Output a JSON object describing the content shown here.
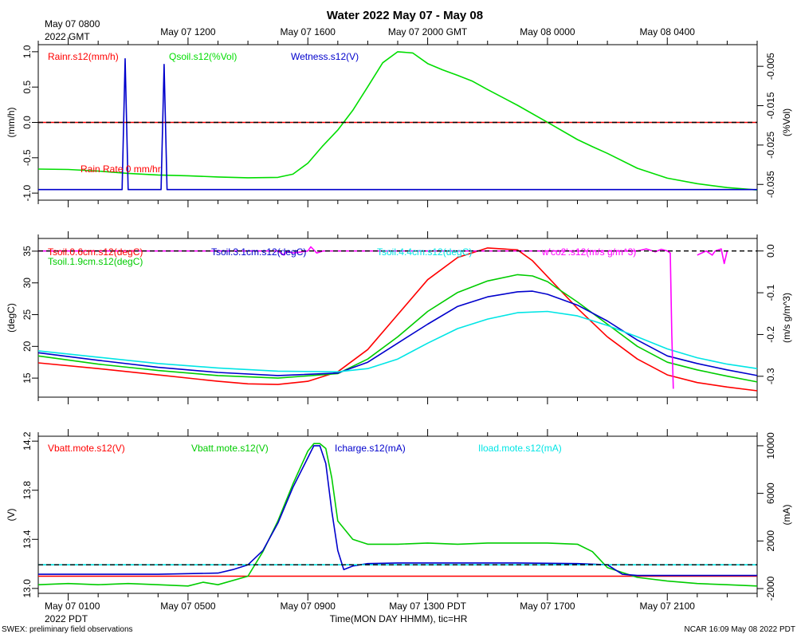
{
  "chart_data": {
    "type": "line",
    "title": "Water 2022 May 07 - May 08",
    "top_date_axis": {
      "origin_label": [
        "May 07 0800",
        "2022 GMT"
      ],
      "ticks": [
        "May 07 1200",
        "May 07 1600",
        "May 07 2000 GMT",
        "May 08 0000",
        "May 08 0400"
      ]
    },
    "bottom_date_axis": {
      "origin_label": [
        "May 07 0100",
        "2022 PDT"
      ],
      "ticks": [
        "May 07 0500",
        "May 07 0900",
        "May 07 1300 PDT",
        "May 07 1700",
        "May 07 2100"
      ],
      "xlabel": "Time(MON DAY HHMM), tic=HR"
    },
    "x_hours_pdt": [
      0,
      24
    ],
    "footer_left": "SWEX: preliminary field observations",
    "footer_right": "NCAR 16:09 May 08 2022 PDT",
    "panels": [
      {
        "id": "water",
        "ylabel_left": "(mm/h)",
        "ylabel_right": "(%Vol)",
        "ylim_left": [
          -1.1,
          1.1
        ],
        "ylim_right": [
          -0.039,
          0.0005
        ],
        "left_ticks": [
          "1.0",
          "0.5",
          "0.0",
          "-0.5",
          "-1.0"
        ],
        "left_tick_values": [
          1.0,
          0.5,
          0.0,
          -0.5,
          -1.0
        ],
        "right_ticks": [
          "-0.005",
          "-0.015",
          "-0.025",
          "-0.035"
        ],
        "right_tick_values": [
          -0.005,
          -0.015,
          -0.025,
          -0.035
        ],
        "annotation": "Rain Rate  0 mm/hr",
        "zero_line": {
          "axis": "left",
          "value": 0
        },
        "series": [
          {
            "name": "Rainr.s12(mm/h)",
            "color": "#ff0000",
            "axis": "left",
            "x": [
              0,
              24
            ],
            "y": [
              0,
              0
            ]
          },
          {
            "name": "Qsoil.s12(%Vol)",
            "color": "#00dd00",
            "axis": "right",
            "x": [
              0,
              1,
              2,
              3,
              4,
              5,
              6,
              7,
              8,
              8.5,
              9,
              9.5,
              10,
              10.5,
              11,
              11.5,
              12,
              12.5,
              13,
              13.5,
              14,
              14.5,
              15,
              16,
              17,
              18,
              18.5,
              19,
              20,
              21,
              22,
              23,
              24
            ],
            "y": [
              -0.0311,
              -0.0312,
              -0.0316,
              -0.0322,
              -0.0326,
              -0.0328,
              -0.0331,
              -0.0333,
              -0.0332,
              -0.0324,
              -0.0296,
              -0.0252,
              -0.0212,
              -0.0162,
              -0.0102,
              -0.0041,
              -0.0013,
              -0.0016,
              -0.0043,
              -0.0059,
              -0.0073,
              -0.0088,
              -0.0109,
              -0.0149,
              -0.0192,
              -0.0236,
              -0.0254,
              -0.0271,
              -0.0309,
              -0.0334,
              -0.0348,
              -0.0358,
              -0.0364
            ]
          },
          {
            "name": "Wetness.s12(V)",
            "color": "#0000cc",
            "axis": "left",
            "x": [
              0,
              2.8,
              2.9,
              3.0,
              4.1,
              4.2,
              4.3,
              24
            ],
            "y": [
              -0.95,
              -0.95,
              0.9,
              -0.95,
              -0.95,
              0.82,
              -0.95,
              -0.95
            ]
          }
        ]
      },
      {
        "id": "soil_temp",
        "ylabel_left": "(degC)",
        "ylabel_right": "(m/s g/m^3)",
        "ylim_left": [
          12,
          37
        ],
        "ylim_right": [
          -0.35,
          0.03
        ],
        "left_ticks": [
          "35",
          "30",
          "25",
          "20",
          "15"
        ],
        "left_tick_values": [
          35,
          30,
          25,
          20,
          15
        ],
        "right_ticks": [
          "0.0",
          "-0.1",
          "-0.2",
          "-0.3"
        ],
        "right_tick_values": [
          0.0,
          -0.1,
          -0.2,
          -0.3
        ],
        "zero_line": {
          "axis": "right",
          "value": 0
        },
        "series": [
          {
            "name": "Tsoil.0.6cm.s12(degC)",
            "color": "#ff0000",
            "axis": "left",
            "x": [
              0,
              2,
              4,
              6,
              7,
              8,
              9,
              10,
              11,
              12,
              13,
              14,
              15,
              16,
              16.5,
              17,
              18,
              19,
              20,
              21,
              22,
              23,
              24
            ],
            "y": [
              17.4,
              16.5,
              15.5,
              14.5,
              14.1,
              14.0,
              14.5,
              16.0,
              19.5,
              25.0,
              30.5,
              34.0,
              35.5,
              35.2,
              33.5,
              31.0,
              26.0,
              21.5,
              18.0,
              15.5,
              14.3,
              13.6,
              13.0
            ]
          },
          {
            "name": "Tsoil.1.9cm.s12(degC)",
            "color": "#00cc00",
            "axis": "left",
            "x": [
              0,
              2,
              4,
              6,
              8,
              10,
              11,
              12,
              13,
              14,
              15,
              16,
              16.5,
              17,
              18,
              19,
              20,
              21,
              22,
              23,
              24
            ],
            "y": [
              18.5,
              17.2,
              16.2,
              15.4,
              15.0,
              15.7,
              18.0,
              21.5,
              25.5,
              28.5,
              30.3,
              31.3,
              31.1,
              30.2,
              27.0,
              23.5,
              20.0,
              17.5,
              16.3,
              15.3,
              14.4
            ]
          },
          {
            "name": "Tsoil.3.1cm.s12(degC)",
            "color": "#0000cc",
            "axis": "left",
            "x": [
              0,
              2,
              4,
              6,
              8,
              10,
              11,
              12,
              13,
              14,
              15,
              16,
              16.5,
              17,
              18,
              19,
              20,
              21,
              22,
              23,
              24
            ],
            "y": [
              19.0,
              17.8,
              16.7,
              15.9,
              15.4,
              15.8,
              17.5,
              20.5,
              23.5,
              26.3,
              27.8,
              28.6,
              28.7,
              28.2,
              26.5,
              24.0,
              21.0,
              18.5,
              17.3,
              16.3,
              15.4
            ]
          },
          {
            "name": "Tsoil.4.4cm.s12(degC)",
            "color": "#00e5e5",
            "axis": "left",
            "x": [
              0,
              2,
              4,
              6,
              8,
              10,
              11,
              12,
              13,
              14,
              15,
              16,
              17,
              18,
              19,
              20,
              21,
              22,
              23,
              24
            ],
            "y": [
              19.3,
              18.3,
              17.3,
              16.6,
              16.1,
              16.0,
              16.5,
              18.0,
              20.5,
              22.8,
              24.3,
              25.3,
              25.5,
              24.8,
              23.3,
              21.5,
              19.6,
              18.2,
              17.2,
              16.5
            ]
          },
          {
            "name": "w'co2'.s12(m/s g/m^3)",
            "color": "#ff00ff",
            "axis": "right",
            "x": [
              0,
              8,
              8.2,
              8.3,
              8.5,
              9,
              9.1,
              9.3,
              9.5,
              10,
              12,
              13,
              14,
              15,
              17,
              18,
              19,
              20,
              20.3,
              20.6,
              20.8,
              21.0,
              21.1,
              21.15,
              21.2,
              21.5,
              22,
              22.3,
              22.5,
              22.6,
              22.8,
              22.9,
              23.0
            ],
            "y": [
              0.0,
              0.0,
              -0.01,
              0.0,
              -0.005,
              0.0,
              0.01,
              -0.005,
              0.0,
              0.0,
              0.0,
              0.0,
              0.0,
              0.0,
              0.0,
              0.0,
              0.0,
              0.0,
              0.005,
              -0.002,
              0.004,
              0.0,
              -0.005,
              -0.2,
              -0.33,
              null,
              -0.01,
              0.0,
              -0.01,
              0.0,
              0.005,
              -0.03,
              0.0
            ]
          }
        ]
      },
      {
        "id": "power",
        "ylabel_left": "(V)",
        "ylabel_right": "(mA)",
        "ylim_left": [
          12.96,
          14.24
        ],
        "ylim_right": [
          -2400,
          10800
        ],
        "left_ticks": [
          "14.2",
          "13.8",
          "13.4",
          "13.0"
        ],
        "left_tick_values": [
          14.2,
          13.8,
          13.4,
          13.0
        ],
        "right_ticks": [
          "10000",
          "6000",
          "2000",
          "-2000"
        ],
        "right_tick_values": [
          10000,
          6000,
          2000,
          -2000
        ],
        "zero_line": {
          "axis": "right",
          "value": 0
        },
        "series": [
          {
            "name": "Vbatt.mote.s12(V)",
            "color": "#ff0000",
            "axis": "left",
            "x": [
              0,
              24
            ],
            "y": [
              13.1,
              13.1
            ]
          },
          {
            "name": "Vbatt.mote.s12(V)",
            "color": "#00cc00",
            "axis": "left",
            "x": [
              0,
              1,
              2,
              3,
              4,
              5,
              5.5,
              6,
              7,
              7.5,
              8,
              8.5,
              9,
              9.2,
              9.4,
              9.6,
              9.8,
              10,
              10.5,
              11,
              12,
              13,
              14,
              15,
              16,
              17,
              18,
              18.5,
              19,
              20,
              21,
              22,
              23,
              24
            ],
            "y": [
              13.03,
              13.04,
              13.03,
              13.04,
              13.03,
              13.02,
              13.05,
              13.03,
              13.1,
              13.3,
              13.55,
              13.85,
              14.12,
              14.18,
              14.18,
              14.14,
              13.9,
              13.55,
              13.4,
              13.36,
              13.36,
              13.37,
              13.36,
              13.37,
              13.37,
              13.37,
              13.36,
              13.3,
              13.17,
              13.09,
              13.06,
              13.04,
              13.03,
              13.02
            ]
          },
          {
            "name": "Icharge.s12(mA)",
            "color": "#0000cc",
            "axis": "right",
            "x": [
              0,
              2,
              4,
              6,
              6.5,
              7,
              7.5,
              8,
              8.5,
              9,
              9.2,
              9.4,
              9.6,
              9.8,
              10,
              10.2,
              10.5,
              11,
              12,
              14,
              16,
              18,
              19,
              19.5,
              20,
              22,
              24
            ],
            "y": [
              -800,
              -800,
              -800,
              -700,
              -400,
              0,
              1200,
              3500,
              6500,
              9000,
              10000,
              10000,
              8500,
              4500,
              1200,
              -400,
              -100,
              100,
              150,
              150,
              150,
              100,
              0,
              -800,
              -900,
              -900,
              -900
            ]
          },
          {
            "name": "Iload.mote.s12(mA)",
            "color": "#00e5e5",
            "axis": "right",
            "x": [
              0,
              24
            ],
            "y": [
              0,
              0
            ]
          }
        ]
      }
    ]
  }
}
